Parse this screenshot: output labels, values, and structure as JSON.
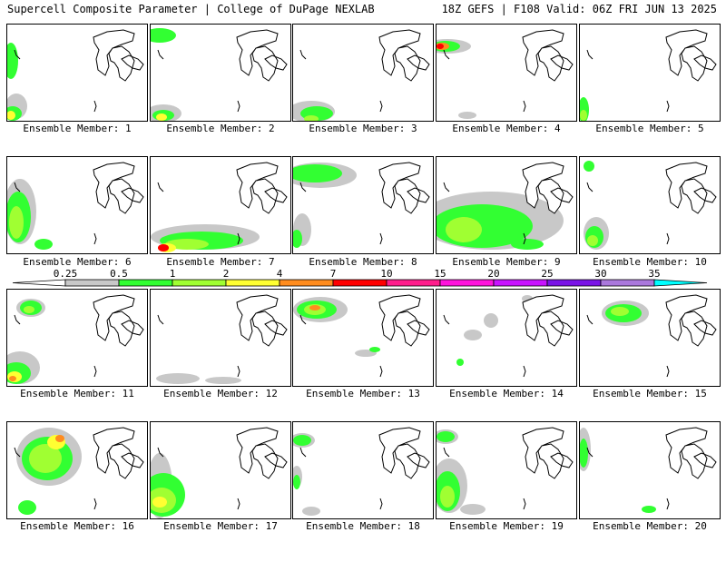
{
  "header": {
    "left": "Supercell Composite Parameter | College of DuPage NEXLAB",
    "right": "18Z GEFS | F108 Valid: 06Z FRI JUN 13 2025"
  },
  "member_label_prefix": "Ensemble Member: ",
  "members": [
    1,
    2,
    3,
    4,
    5,
    6,
    7,
    8,
    9,
    10,
    11,
    12,
    13,
    14,
    15,
    16,
    17,
    18,
    19,
    20
  ],
  "colorbar": {
    "ticks": [
      "0.25",
      "0.5",
      "1",
      "2",
      "4",
      "7",
      "10",
      "15",
      "20",
      "25",
      "30",
      "35"
    ],
    "colors": [
      "#c8c8c8",
      "#32ff32",
      "#a0ff32",
      "#ffff32",
      "#ff8c1e",
      "#ff0000",
      "#ff1e8c",
      "#ff14dc",
      "#c814ff",
      "#7a14e6",
      "#aa78dc",
      "#00ffff"
    ]
  }
}
